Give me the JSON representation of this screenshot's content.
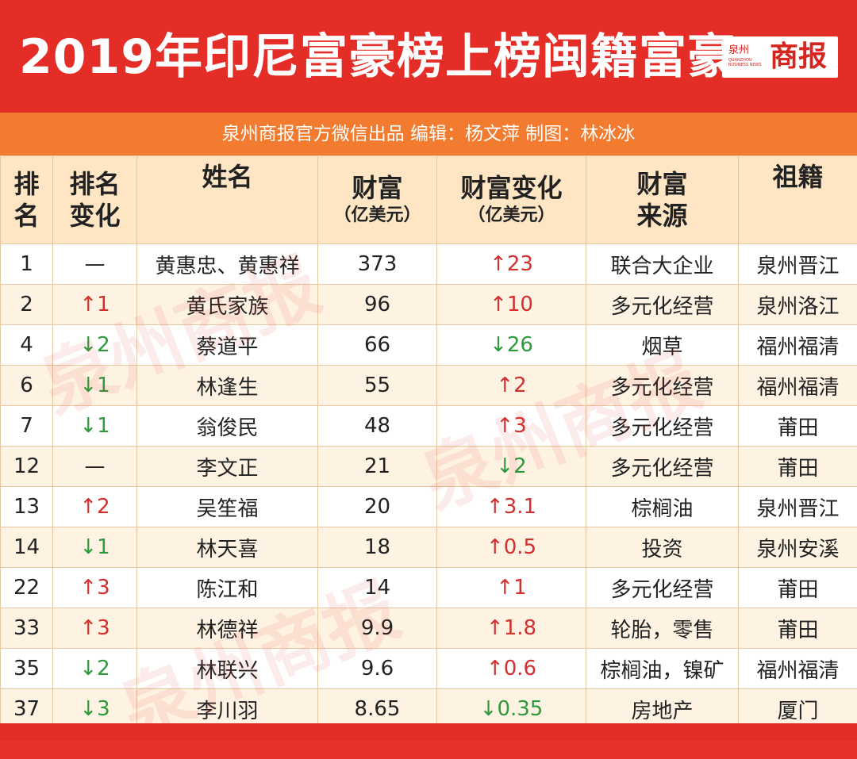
{
  "header": {
    "title": "2019年印尼富豪榜上榜闽籍富豪",
    "logo_small": "泉州",
    "logo_tiny": "QUANZHOU BUSINESS NEWS",
    "logo_big": "商报",
    "subtitle": "泉州商报官方微信出品  编辑：杨文萍  制图：林冰冰"
  },
  "columns": {
    "rank_1": "排",
    "rank_2": "名",
    "change_1": "排名",
    "change_2": "变化",
    "name": "姓名",
    "wealth": "财富",
    "wealth_unit": "（亿美元）",
    "wchange": "财富变化",
    "wchange_unit": "（亿美元）",
    "source_1": "财富",
    "source_2": "来源",
    "origin": "祖籍"
  },
  "watermark": "泉州商报",
  "colors": {
    "up": "#d32f2f",
    "down": "#2e9a3c",
    "header_bg": "#fee6c4",
    "title_bg": "#e52d27",
    "subtitle_bg": "#f37b2f"
  },
  "rows": [
    {
      "rank": "1",
      "rank_change": "—",
      "name": "黄惠忠、黄惠祥",
      "wealth": "373",
      "wealth_change": "↑23",
      "source": "联合大企业",
      "origin": "泉州晋江"
    },
    {
      "rank": "2",
      "rank_change": "↑1",
      "name": "黄氏家族",
      "wealth": "96",
      "wealth_change": "↑10",
      "source": "多元化经营",
      "origin": "泉州洛江"
    },
    {
      "rank": "4",
      "rank_change": "↓2",
      "name": "蔡道平",
      "wealth": "66",
      "wealth_change": "↓26",
      "source": "烟草",
      "origin": "福州福清"
    },
    {
      "rank": "6",
      "rank_change": "↓1",
      "name": "林逢生",
      "wealth": "55",
      "wealth_change": "↑2",
      "source": "多元化经营",
      "origin": "福州福清"
    },
    {
      "rank": "7",
      "rank_change": "↓1",
      "name": "翁俊民",
      "wealth": "48",
      "wealth_change": "↑3",
      "source": "多元化经营",
      "origin": "莆田"
    },
    {
      "rank": "12",
      "rank_change": "—",
      "name": "李文正",
      "wealth": "21",
      "wealth_change": "↓2",
      "source": "多元化经营",
      "origin": "莆田"
    },
    {
      "rank": "13",
      "rank_change": "↑2",
      "name": "吴笙福",
      "wealth": "20",
      "wealth_change": "↑3.1",
      "source": "棕榈油",
      "origin": "泉州晋江"
    },
    {
      "rank": "14",
      "rank_change": "↓1",
      "name": "林天喜",
      "wealth": "18",
      "wealth_change": "↑0.5",
      "source": "投资",
      "origin": "泉州安溪"
    },
    {
      "rank": "22",
      "rank_change": "↑3",
      "name": "陈江和",
      "wealth": "14",
      "wealth_change": "↑1",
      "source": "多元化经营",
      "origin": "莆田"
    },
    {
      "rank": "33",
      "rank_change": "↑3",
      "name": "林德祥",
      "wealth": "9.9",
      "wealth_change": "↑1.8",
      "source": "轮胎，零售",
      "origin": "莆田"
    },
    {
      "rank": "35",
      "rank_change": "↓2",
      "name": "林联兴",
      "wealth": "9.6",
      "wealth_change": "↑0.6",
      "source": "棕榈油，镍矿",
      "origin": "福州福清"
    },
    {
      "rank": "37",
      "rank_change": "↓3",
      "name": "李川羽",
      "wealth": "8.65",
      "wealth_change": "↓0.35",
      "source": "房地产",
      "origin": "厦门"
    }
  ]
}
